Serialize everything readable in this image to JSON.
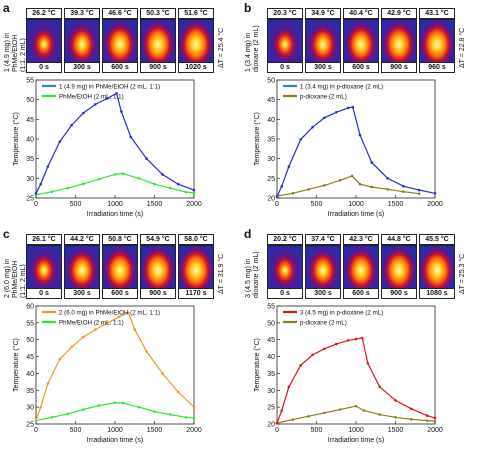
{
  "colors": {
    "blue": "#1f2fd6",
    "green": "#33e633",
    "orange": "#f5962a",
    "red": "#e0141e",
    "olive": "#8a7d1c",
    "legend_blue": "#2c7fd1"
  },
  "panels": [
    {
      "letter": "a",
      "side_label": [
        "1 (4.9 mg) in",
        "PhMe/EtOH",
        "(1:1, 2 mL)"
      ],
      "delta": "ΔT = 25.4 °C",
      "thermal": [
        {
          "temp": "26.2 °C",
          "time": "0 s",
          "level": 0.15
        },
        {
          "temp": "39.3 °C",
          "time": "300 s",
          "level": 0.5
        },
        {
          "temp": "46.6 °C",
          "time": "600 s",
          "level": 0.75
        },
        {
          "temp": "50.3 °C",
          "time": "900 s",
          "level": 0.88
        },
        {
          "temp": "51.6 °C",
          "time": "1020 s",
          "level": 0.93
        }
      ],
      "legend": [
        {
          "label": "1 (4.9 mg) in PhMe/EtOH (2 mL, 1:1)",
          "color": "#2c7fd1"
        },
        {
          "label": "PhMe/EtOH (2 mL, 1:1)",
          "color": "#33e633"
        }
      ]
    },
    {
      "letter": "b",
      "side_label": [
        "1 (3.4 mg) in",
        "dioxane (2 mL)"
      ],
      "delta": "ΔT = 22.8 °C",
      "thermal": [
        {
          "temp": "20.3 °C",
          "time": "0 s",
          "level": 0.15
        },
        {
          "temp": "34.9 °C",
          "time": "300 s",
          "level": 0.5
        },
        {
          "temp": "40.4 °C",
          "time": "600 s",
          "level": 0.72
        },
        {
          "temp": "42.9 °C",
          "time": "900 s",
          "level": 0.85
        },
        {
          "temp": "43.1 °C",
          "time": "960 s",
          "level": 0.9
        }
      ],
      "legend": [
        {
          "label": "1 (3.4 mg) in p-dioxane (2 mL)",
          "color": "#2c7fd1"
        },
        {
          "label": "p-dioxane (2 mL)",
          "color": "#8a7d1c"
        }
      ]
    },
    {
      "letter": "c",
      "side_label": [
        "2 (6.0 mg) in",
        "PhMe/EtOH",
        "(1:1, 2 mL)"
      ],
      "delta": "ΔT = 31.9 °C",
      "thermal": [
        {
          "temp": "26.1 °C",
          "time": "0 s",
          "level": 0.2
        },
        {
          "temp": "44.2 °C",
          "time": "300 s",
          "level": 0.65
        },
        {
          "temp": "50.8 °C",
          "time": "600 s",
          "level": 0.8
        },
        {
          "temp": "54.9 °C",
          "time": "900 s",
          "level": 0.9
        },
        {
          "temp": "58.0 °C",
          "time": "1170 s",
          "level": 0.97
        }
      ],
      "legend": [
        {
          "label": "2 (6.0 mg) in PhMe/EtOH (2 mL, 1:1)",
          "color": "#f5962a"
        },
        {
          "label": "PhMe/EtOH (2 mL, 1:1)",
          "color": "#33e633"
        }
      ]
    },
    {
      "letter": "d",
      "side_label": [
        "3 (4.5 mg) in",
        "dioxane (2 mL)"
      ],
      "delta": "ΔT = 25.3 °C",
      "thermal": [
        {
          "temp": "20.2 °C",
          "time": "0 s",
          "level": 0.15
        },
        {
          "temp": "37.4 °C",
          "time": "300 s",
          "level": 0.55
        },
        {
          "temp": "42.3 °C",
          "time": "600 s",
          "level": 0.75
        },
        {
          "temp": "44.8 °C",
          "time": "900 s",
          "level": 0.88
        },
        {
          "temp": "45.5 °C",
          "time": "1080 s",
          "level": 0.93
        }
      ],
      "legend": [
        {
          "label": "3 (4.5 mg) in p-dioxane (2 mL)",
          "color": "#e0141e"
        },
        {
          "label": "p-dioxane (2 mL)",
          "color": "#8a7d1c"
        }
      ]
    }
  ],
  "chart_data": [
    {
      "type": "line",
      "xlabel": "Irradiation time (s)",
      "ylabel": "Temperature (°C)",
      "xlim": [
        0,
        2000
      ],
      "ylim": [
        25,
        55
      ],
      "xticks": [
        0,
        500,
        1000,
        1500,
        2000
      ],
      "yticks": [
        25,
        30,
        35,
        40,
        45,
        50,
        55
      ],
      "series": [
        {
          "name": "1 (4.9 mg) in PhMe/EtOH (2 mL, 1:1)",
          "color": "#1f2fd6",
          "x": [
            0,
            60,
            150,
            300,
            450,
            600,
            750,
            900,
            1020,
            1080,
            1200,
            1400,
            1600,
            1800,
            2000
          ],
          "y": [
            26.2,
            28.5,
            33,
            39.3,
            43.5,
            46.6,
            48.8,
            50.3,
            51.6,
            47,
            40.5,
            35,
            31,
            28.5,
            27
          ]
        },
        {
          "name": "PhMe/EtOH (2 mL, 1:1)",
          "color": "#33e633",
          "x": [
            0,
            200,
            400,
            600,
            800,
            1000,
            1100,
            1300,
            1500,
            1700,
            1900,
            2000
          ],
          "y": [
            25.8,
            26.6,
            27.5,
            28.6,
            29.8,
            31,
            31.2,
            30,
            28.5,
            27.5,
            26.5,
            26.3
          ]
        }
      ]
    },
    {
      "type": "line",
      "xlabel": "Irradiation time (s)",
      "ylabel": "Temperature (°C)",
      "xlim": [
        0,
        2000
      ],
      "ylim": [
        20,
        50
      ],
      "xticks": [
        0,
        500,
        1000,
        1500,
        2000
      ],
      "yticks": [
        20,
        25,
        30,
        35,
        40,
        45,
        50
      ],
      "series": [
        {
          "name": "1 (3.4 mg) in p-dioxane (2 mL)",
          "color": "#1f2fd6",
          "x": [
            0,
            60,
            150,
            300,
            450,
            600,
            750,
            900,
            960,
            1050,
            1200,
            1400,
            1600,
            1800,
            2000
          ],
          "y": [
            20.3,
            23,
            28,
            34.9,
            38,
            40.4,
            41.8,
            42.9,
            43.1,
            36,
            29,
            25,
            23,
            22,
            21.2
          ]
        },
        {
          "name": "p-dioxane (2 mL)",
          "color": "#8a7d1c",
          "x": [
            0,
            200,
            400,
            600,
            800,
            950,
            1050,
            1200,
            1400,
            1600,
            1800
          ],
          "y": [
            20.5,
            21.2,
            22.2,
            23.2,
            24.5,
            25.6,
            23.5,
            22.8,
            22.2,
            21.6,
            21.1
          ]
        }
      ]
    },
    {
      "type": "line",
      "xlabel": "Irradiation time (s)",
      "ylabel": "Temperature (°C)",
      "xlim": [
        0,
        2000
      ],
      "ylim": [
        25,
        60
      ],
      "xticks": [
        0,
        500,
        1000,
        1500,
        2000
      ],
      "yticks": [
        25,
        30,
        35,
        40,
        45,
        50,
        55,
        60
      ],
      "series": [
        {
          "name": "2 (6.0 mg) in PhMe/EtOH (2 mL, 1:1)",
          "color": "#f5962a",
          "x": [
            0,
            60,
            150,
            300,
            450,
            600,
            750,
            900,
            1050,
            1170,
            1250,
            1400,
            1600,
            1800,
            2000
          ],
          "y": [
            26.1,
            30,
            37,
            44.2,
            47.8,
            50.8,
            53,
            54.9,
            56.8,
            58,
            53,
            46.5,
            40,
            34.5,
            30
          ]
        },
        {
          "name": "PhMe/EtOH (2 mL, 1:1)",
          "color": "#33e633",
          "x": [
            0,
            200,
            400,
            600,
            800,
            1000,
            1100,
            1300,
            1500,
            1700,
            1900,
            2000
          ],
          "y": [
            26,
            27,
            28,
            29.3,
            30.5,
            31.3,
            31.2,
            30,
            28.7,
            27.8,
            27,
            26.7
          ]
        }
      ]
    },
    {
      "type": "line",
      "xlabel": "Irradiation time (s)",
      "ylabel": "Temperature (°C)",
      "xlim": [
        0,
        2000
      ],
      "ylim": [
        20,
        55
      ],
      "xticks": [
        0,
        500,
        1000,
        1500,
        2000
      ],
      "yticks": [
        20,
        25,
        30,
        35,
        40,
        45,
        50,
        55
      ],
      "series": [
        {
          "name": "3 (4.5 mg) in p-dioxane (2 mL)",
          "color": "#e0141e",
          "x": [
            0,
            60,
            150,
            300,
            450,
            600,
            750,
            900,
            1000,
            1080,
            1150,
            1300,
            1500,
            1700,
            1900,
            2000
          ],
          "y": [
            20.2,
            24,
            31,
            37.4,
            40.5,
            42.3,
            43.7,
            44.8,
            45.2,
            45.5,
            38,
            31,
            27,
            24.5,
            22.5,
            21.8
          ]
        },
        {
          "name": "p-dioxane (2 mL)",
          "color": "#8a7d1c",
          "x": [
            0,
            200,
            400,
            600,
            800,
            1000,
            1100,
            1300,
            1500,
            1700,
            1900,
            2000
          ],
          "y": [
            20.3,
            21.3,
            22.3,
            23.3,
            24.3,
            25.3,
            24,
            22.8,
            22,
            21.4,
            21,
            20.8
          ]
        }
      ]
    }
  ]
}
